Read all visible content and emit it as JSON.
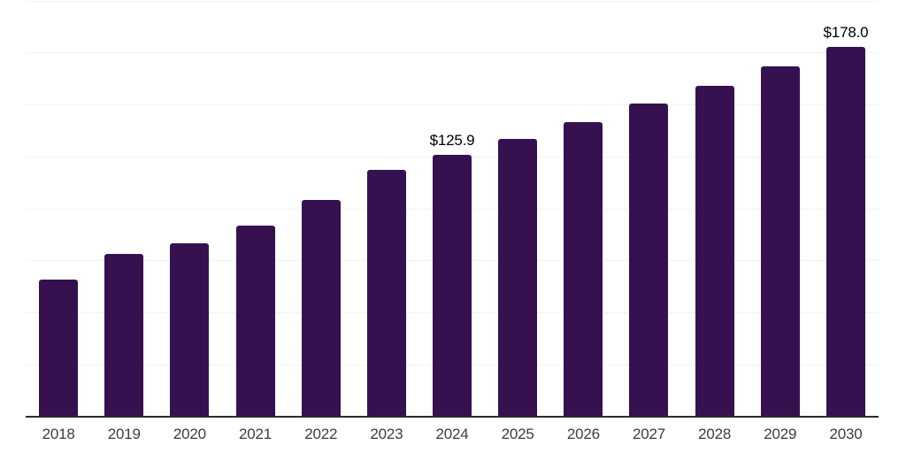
{
  "chart_data": {
    "type": "bar",
    "title": "",
    "xlabel": "",
    "ylabel": "",
    "categories": [
      "2018",
      "2019",
      "2020",
      "2021",
      "2022",
      "2023",
      "2024",
      "2025",
      "2026",
      "2027",
      "2028",
      "2029",
      "2030"
    ],
    "values": [
      66.1,
      78.3,
      83.4,
      92.0,
      104.4,
      118.8,
      125.9,
      133.8,
      141.8,
      150.7,
      159.2,
      168.6,
      178.0
    ],
    "annotations": [
      {
        "category": "2024",
        "text": "$125.9"
      },
      {
        "category": "2030",
        "text": "$178.0"
      }
    ],
    "ylim": [
      0,
      200
    ],
    "gridline_step": 25,
    "grid": "horizontal only, very light, no y-axis tick labels",
    "legend_position": "none",
    "colors": {
      "bar": "#35124f",
      "axis": "#2b2b2b",
      "gridline": "#f2f2f2",
      "year_label": "#3d3d3d",
      "value_label": "#000000",
      "background": "#ffffff"
    }
  }
}
